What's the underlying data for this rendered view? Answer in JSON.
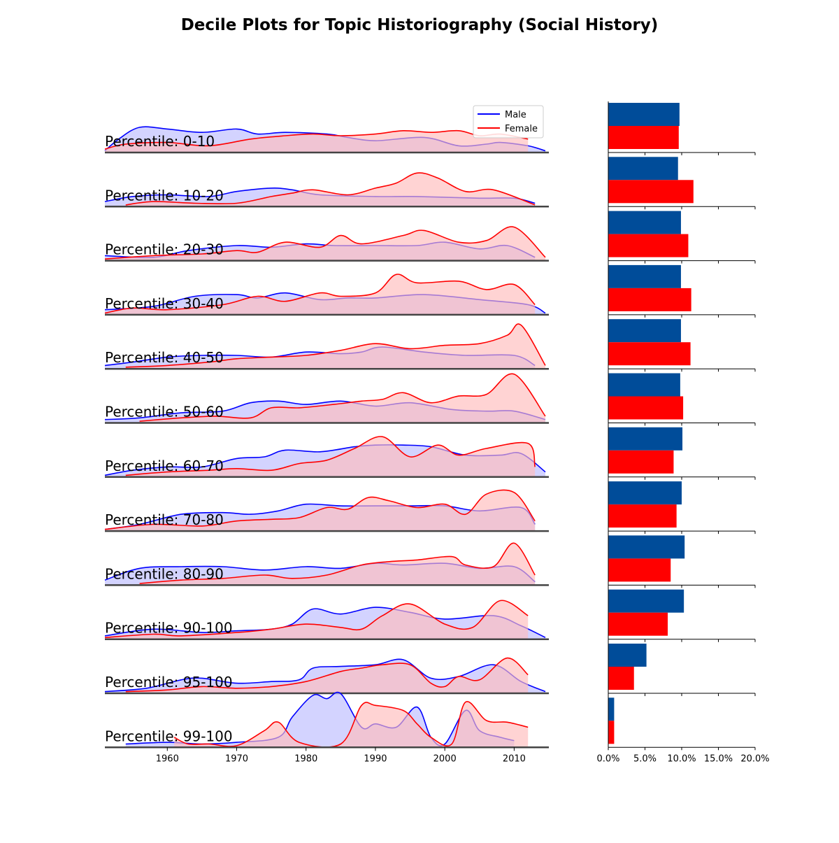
{
  "chart_data": {
    "type": "area",
    "title": "Decile Plots for Topic Historiography (Social History)",
    "legend": {
      "placement": "top-right",
      "entries": [
        {
          "name": "Male",
          "color": "#0000ff",
          "fill": "#bbbbff"
        },
        {
          "name": "Female",
          "color": "#ff0000",
          "fill": "#ffbbbb"
        }
      ]
    },
    "x_axis": {
      "range": [
        1951,
        2015
      ],
      "ticks": [
        1960,
        1970,
        1980,
        1990,
        2000,
        2010
      ],
      "tick_labels": [
        "1960",
        "1970",
        "1980",
        "1990",
        "2000",
        "2010"
      ]
    },
    "bar_axis": {
      "range": [
        0,
        20
      ],
      "ticks": [
        0,
        5,
        10,
        15,
        20
      ],
      "tick_labels": [
        "0.0%",
        "5.0%",
        "10.0%",
        "15.0%",
        "20.0%"
      ]
    },
    "bar_colors": {
      "male": "#004c99",
      "female": "#ff0000"
    },
    "rows": [
      {
        "label": "Percentile: 0-10",
        "bar": {
          "male": 9.7,
          "female": 9.6
        },
        "male": {
          "x": [
            1951,
            1953,
            1956,
            1960,
            1965,
            1970,
            1973,
            1977,
            1983,
            1986,
            1990,
            1997,
            2002,
            2006,
            2008,
            2012,
            2014.5
          ],
          "y": [
            0.05,
            0.4,
            0.75,
            0.7,
            0.6,
            0.7,
            0.55,
            0.6,
            0.55,
            0.45,
            0.35,
            0.45,
            0.2,
            0.25,
            0.3,
            0.2,
            0.05
          ]
        },
        "female": {
          "x": [
            1951,
            1954,
            1960,
            1966,
            1972,
            1977,
            1981,
            1985,
            1990,
            1994,
            1998,
            2002,
            2005,
            2008,
            2012
          ],
          "y": [
            0.1,
            0.25,
            0.3,
            0.2,
            0.4,
            0.5,
            0.55,
            0.5,
            0.55,
            0.65,
            0.6,
            0.65,
            0.5,
            0.55,
            0.4
          ]
        }
      },
      {
        "label": "Percentile: 10-20",
        "bar": {
          "male": 9.5,
          "female": 11.6
        },
        "male": {
          "x": [
            1951,
            1955,
            1960,
            1966,
            1970,
            1975,
            1978,
            1982,
            1990,
            1996,
            2005,
            2010,
            2013
          ],
          "y": [
            0.15,
            0.3,
            0.35,
            0.3,
            0.45,
            0.55,
            0.5,
            0.35,
            0.3,
            0.3,
            0.25,
            0.25,
            0.1
          ]
        },
        "female": {
          "x": [
            1954,
            1958,
            1964,
            1970,
            1975,
            1978,
            1981,
            1986,
            1990,
            1993,
            1996,
            1999,
            2003,
            2007,
            2013
          ],
          "y": [
            0.05,
            0.15,
            0.1,
            0.1,
            0.3,
            0.4,
            0.5,
            0.35,
            0.55,
            0.7,
            1.0,
            0.85,
            0.45,
            0.5,
            0.05
          ]
        }
      },
      {
        "label": "Percentile: 20-30",
        "bar": {
          "male": 9.9,
          "female": 10.9
        },
        "male": {
          "x": [
            1951,
            1958,
            1963,
            1970,
            1975,
            1980,
            1984,
            1990,
            1996,
            2000,
            2005,
            2009,
            2013
          ],
          "y": [
            0.15,
            0.1,
            0.3,
            0.45,
            0.4,
            0.5,
            0.45,
            0.45,
            0.45,
            0.55,
            0.35,
            0.45,
            0.1
          ]
        },
        "female": {
          "x": [
            1951,
            1958,
            1965,
            1970,
            1973,
            1977,
            1982,
            1985,
            1988,
            1994,
            1997,
            2002,
            2006,
            2010,
            2014.5
          ],
          "y": [
            0.05,
            0.15,
            0.2,
            0.3,
            0.25,
            0.55,
            0.4,
            0.75,
            0.5,
            0.75,
            0.9,
            0.55,
            0.6,
            1.0,
            0.1
          ]
        }
      },
      {
        "label": "Percentile: 30-40",
        "bar": {
          "male": 9.9,
          "female": 11.3
        },
        "male": {
          "x": [
            1951,
            1958,
            1964,
            1970,
            1973,
            1977,
            1982,
            1986,
            1990,
            1997,
            2005,
            2012,
            2014.5
          ],
          "y": [
            0.15,
            0.25,
            0.55,
            0.6,
            0.5,
            0.65,
            0.45,
            0.5,
            0.5,
            0.6,
            0.45,
            0.3,
            0.05
          ]
        },
        "female": {
          "x": [
            1951,
            1955,
            1960,
            1968,
            1973,
            1977,
            1982,
            1985,
            1990,
            1993,
            1996,
            2002,
            2006,
            2010,
            2013
          ],
          "y": [
            0.05,
            0.2,
            0.15,
            0.3,
            0.55,
            0.4,
            0.65,
            0.55,
            0.65,
            1.2,
            0.95,
            1.0,
            0.75,
            0.9,
            0.3
          ]
        }
      },
      {
        "label": "Percentile: 40-50",
        "bar": {
          "male": 9.9,
          "female": 11.2
        },
        "male": {
          "x": [
            1951,
            1955,
            1960,
            1965,
            1970,
            1975,
            1980,
            1985,
            1988,
            1991,
            1997,
            2003,
            2010,
            2013
          ],
          "y": [
            0.1,
            0.2,
            0.35,
            0.4,
            0.4,
            0.35,
            0.5,
            0.45,
            0.5,
            0.65,
            0.5,
            0.4,
            0.4,
            0.1
          ]
        },
        "female": {
          "x": [
            1954,
            1960,
            1966,
            1970,
            1975,
            1980,
            1985,
            1990,
            1995,
            2000,
            2005,
            2009,
            2011,
            2014.5
          ],
          "y": [
            0.05,
            0.1,
            0.2,
            0.3,
            0.35,
            0.4,
            0.55,
            0.75,
            0.6,
            0.7,
            0.75,
            1.0,
            1.3,
            0.1
          ]
        }
      },
      {
        "label": "Percentile: 50-60",
        "bar": {
          "male": 9.8,
          "female": 10.2
        },
        "male": {
          "x": [
            1951,
            1956,
            1962,
            1968,
            1972,
            1976,
            1980,
            1985,
            1990,
            1995,
            2001,
            2006,
            2010,
            2014.5
          ],
          "y": [
            0.1,
            0.15,
            0.3,
            0.35,
            0.6,
            0.65,
            0.55,
            0.65,
            0.5,
            0.6,
            0.4,
            0.35,
            0.35,
            0.1
          ]
        },
        "female": {
          "x": [
            1956,
            1962,
            1967,
            1972,
            1975,
            1979,
            1984,
            1988,
            1991,
            1994,
            1998,
            2002,
            2006,
            2010,
            2014.5
          ],
          "y": [
            0.05,
            0.15,
            0.2,
            0.15,
            0.45,
            0.45,
            0.55,
            0.65,
            0.7,
            0.9,
            0.6,
            0.8,
            0.85,
            1.45,
            0.2
          ]
        }
      },
      {
        "label": "Percentile: 60-70",
        "bar": {
          "male": 10.1,
          "female": 8.9
        },
        "male": {
          "x": [
            1951,
            1955,
            1960,
            1965,
            1970,
            1974,
            1977,
            1982,
            1987,
            1990,
            1994,
            1998,
            2003,
            2008,
            2011,
            2014.5
          ],
          "y": [
            0.05,
            0.2,
            0.3,
            0.3,
            0.55,
            0.6,
            0.8,
            0.75,
            0.9,
            0.95,
            0.95,
            0.9,
            0.65,
            0.65,
            0.7,
            0.15
          ]
        },
        "female": {
          "x": [
            1954,
            1960,
            1966,
            1970,
            1975,
            1979,
            1983,
            1987,
            1991,
            1995,
            1999,
            2002,
            2006,
            2012,
            2013
          ],
          "y": [
            0.05,
            0.15,
            0.2,
            0.25,
            0.2,
            0.4,
            0.5,
            0.85,
            1.2,
            0.6,
            0.95,
            0.65,
            0.85,
            1.0,
            0.3
          ]
        }
      },
      {
        "label": "Percentile: 70-80",
        "bar": {
          "male": 10.0,
          "female": 9.3
        },
        "male": {
          "x": [
            1951,
            1956,
            1962,
            1968,
            1972,
            1976,
            1980,
            1985,
            1990,
            1995,
            2000,
            2005,
            2011,
            2013
          ],
          "y": [
            0.05,
            0.2,
            0.5,
            0.55,
            0.5,
            0.6,
            0.8,
            0.75,
            0.75,
            0.75,
            0.75,
            0.6,
            0.7,
            0.2
          ]
        },
        "female": {
          "x": [
            1951,
            1958,
            1965,
            1970,
            1975,
            1979,
            1983,
            1986,
            1989,
            1992,
            1996,
            2000,
            2003,
            2006,
            2010,
            2013
          ],
          "y": [
            0.05,
            0.2,
            0.15,
            0.3,
            0.35,
            0.4,
            0.7,
            0.65,
            1.0,
            0.9,
            0.7,
            0.8,
            0.5,
            1.1,
            1.15,
            0.3
          ]
        }
      },
      {
        "label": "Percentile: 80-90",
        "bar": {
          "male": 10.4,
          "female": 8.5
        },
        "male": {
          "x": [
            1951,
            1956,
            1962,
            1968,
            1974,
            1980,
            1985,
            1990,
            1994,
            2000,
            2005,
            2010,
            2013
          ],
          "y": [
            0.15,
            0.5,
            0.55,
            0.55,
            0.45,
            0.55,
            0.5,
            0.65,
            0.6,
            0.65,
            0.5,
            0.55,
            0.1
          ]
        },
        "female": {
          "x": [
            1956,
            1962,
            1968,
            1974,
            1978,
            1983,
            1988,
            1992,
            1996,
            2001,
            2003,
            2007,
            2010,
            2013
          ],
          "y": [
            0.05,
            0.15,
            0.2,
            0.3,
            0.2,
            0.3,
            0.6,
            0.7,
            0.75,
            0.85,
            0.6,
            0.55,
            1.25,
            0.3
          ]
        }
      },
      {
        "label": "Percentile: 90-100",
        "bar": {
          "male": 10.3,
          "female": 8.1
        },
        "male": {
          "x": [
            1951,
            1958,
            1965,
            1970,
            1975,
            1978,
            1981,
            1985,
            1990,
            1995,
            2000,
            2007,
            2011,
            2014.5
          ],
          "y": [
            0.1,
            0.3,
            0.2,
            0.25,
            0.3,
            0.45,
            0.9,
            0.75,
            0.95,
            0.8,
            0.6,
            0.7,
            0.4,
            0.05
          ]
        },
        "female": {
          "x": [
            1951,
            1958,
            1962,
            1970,
            1975,
            1980,
            1985,
            1988,
            1991,
            1995,
            2000,
            2004,
            2008,
            2012
          ],
          "y": [
            0.05,
            0.15,
            0.1,
            0.2,
            0.3,
            0.45,
            0.35,
            0.3,
            0.7,
            1.05,
            0.45,
            0.35,
            1.15,
            0.7
          ]
        }
      },
      {
        "label": "Percentile: 95-100",
        "bar": {
          "male": 5.2,
          "female": 3.5
        },
        "male": {
          "x": [
            1951,
            1957,
            1962,
            1965,
            1970,
            1975,
            1979,
            1981,
            1985,
            1990,
            1994,
            1998,
            2002,
            2007,
            2011,
            2014.5
          ],
          "y": [
            0.05,
            0.15,
            0.4,
            0.45,
            0.3,
            0.35,
            0.4,
            0.75,
            0.8,
            0.85,
            1.0,
            0.45,
            0.5,
            0.85,
            0.35,
            0.05
          ]
        },
        "female": {
          "x": [
            1954,
            1960,
            1965,
            1970,
            1975,
            1980,
            1985,
            1988,
            1991,
            1995,
            1998,
            2000,
            2002,
            2005,
            2009,
            2012
          ],
          "y": [
            0.05,
            0.1,
            0.2,
            0.15,
            0.2,
            0.35,
            0.65,
            0.75,
            0.85,
            0.85,
            0.3,
            0.2,
            0.5,
            0.4,
            1.05,
            0.55
          ]
        }
      },
      {
        "label": "Percentile: 99-100",
        "bar": {
          "male": 0.8,
          "female": 0.8
        },
        "male": {
          "x": [
            1954,
            1960,
            1965,
            1970,
            1976,
            1978,
            1981,
            1983,
            1985,
            1988,
            1990,
            1993,
            1996,
            1998,
            2000,
            2003,
            2005,
            2008,
            2010
          ],
          "y": [
            0.1,
            0.15,
            0.1,
            0.15,
            0.3,
            0.9,
            1.55,
            1.45,
            1.6,
            0.6,
            0.7,
            0.6,
            1.2,
            0.3,
            0.1,
            1.1,
            0.5,
            0.3,
            0.2
          ]
        },
        "female": {
          "x": [
            1961,
            1963,
            1966,
            1970,
            1974,
            1976,
            1979,
            1985,
            1988,
            1990,
            1994,
            1996,
            1998,
            2001,
            2003,
            2006,
            2009,
            2012
          ],
          "y": [
            0.3,
            0.1,
            0.1,
            0.05,
            0.5,
            0.75,
            0.15,
            0.1,
            1.25,
            1.25,
            1.1,
            0.7,
            0.3,
            0.1,
            1.35,
            0.8,
            0.75,
            0.6
          ]
        }
      }
    ]
  }
}
